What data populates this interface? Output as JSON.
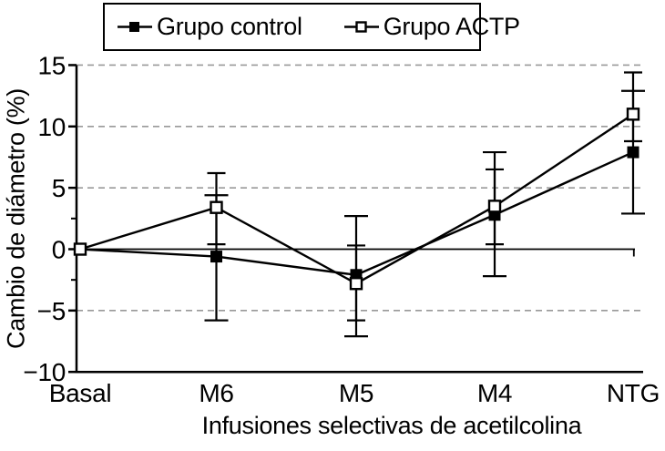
{
  "colors": {
    "line": "#000000",
    "grid": "#999999",
    "background": "#ffffff"
  },
  "chart_data": {
    "type": "line",
    "title": "",
    "xlabel": "Infusiones selectivas de acetilcolina",
    "ylabel": "Cambio de diámetro (%)",
    "categories": [
      "Basal",
      "M6",
      "M5",
      "M4",
      "NTG"
    ],
    "ylim": [
      -10,
      15
    ],
    "y_ticks": [
      15,
      10,
      5,
      0,
      -5,
      -10
    ],
    "y_tick_labels": [
      "15",
      "10",
      "5",
      "0",
      "−5",
      "−10"
    ],
    "y_minor_ticks": [
      2.5,
      -2.5
    ],
    "gridlines_dashed_at": [
      15,
      10,
      5,
      -5
    ],
    "zero_line": true,
    "grid": "dashed-horizontal",
    "legend_position": "top",
    "series": [
      {
        "name": "Grupo control",
        "marker": "filled-square",
        "values": [
          0,
          -0.6,
          -2.1,
          2.8,
          7.9
        ],
        "error_high": [
          null,
          4.4,
          2.7,
          7.9,
          12.9
        ],
        "error_low": [
          null,
          -5.8,
          -7.1,
          -2.2,
          2.9
        ]
      },
      {
        "name": "Grupo ACTP",
        "marker": "open-square",
        "values": [
          0,
          3.4,
          -2.8,
          3.5,
          11.0
        ],
        "error_high": [
          null,
          6.2,
          0.3,
          6.5,
          14.4
        ],
        "error_low": [
          null,
          0.4,
          -5.8,
          0.4,
          8.8
        ]
      }
    ]
  }
}
